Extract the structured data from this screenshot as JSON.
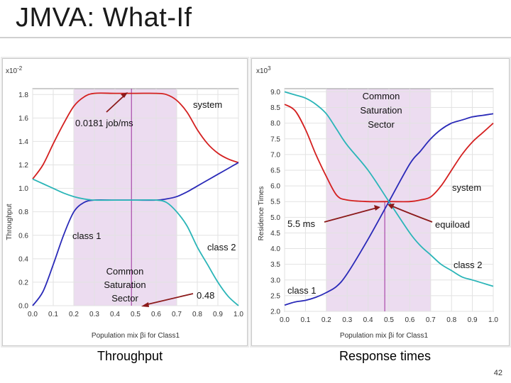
{
  "slide": {
    "title": "JMVA: What-If",
    "page_number": "42"
  },
  "colors": {
    "class1": "#2a2ab8",
    "class2": "#2bb5b8",
    "system": "#d42020",
    "sector": "#ecdcf0",
    "annotation_arrow": "#8b1a1a",
    "marker_line": "#9b2d9b"
  },
  "chart_data": [
    {
      "type": "line",
      "caption": "Throughput",
      "title": "",
      "xlabel": "Population mix βi for Class1",
      "ylabel": "Throughput",
      "scale_label": "x10",
      "scale_exp": "-2",
      "x_ticks": [
        "0.0",
        "0.1",
        "0.2",
        "0.3",
        "0.4",
        "0.5",
        "0.6",
        "0.7",
        "0.8",
        "0.9",
        "1.0"
      ],
      "y_ticks": [
        "0.0",
        "0.2",
        "0.4",
        "0.6",
        "0.8",
        "1.0",
        "1.2",
        "1.4",
        "1.6",
        "1.8"
      ],
      "xlim": [
        0,
        1
      ],
      "ylim": [
        0,
        1.85
      ],
      "sector_range": [
        0.2,
        0.7
      ],
      "marker_x": 0.48,
      "series": [
        {
          "name": "system",
          "x": [
            0,
            0.05,
            0.1,
            0.15,
            0.2,
            0.25,
            0.3,
            0.4,
            0.5,
            0.6,
            0.65,
            0.7,
            0.75,
            0.8,
            0.85,
            0.9,
            0.95,
            1.0
          ],
          "values": [
            1.08,
            1.2,
            1.38,
            1.55,
            1.7,
            1.78,
            1.81,
            1.81,
            1.81,
            1.81,
            1.8,
            1.75,
            1.65,
            1.5,
            1.38,
            1.3,
            1.25,
            1.22
          ]
        },
        {
          "name": "class 1",
          "x": [
            0,
            0.05,
            0.1,
            0.15,
            0.2,
            0.25,
            0.3,
            0.4,
            0.5,
            0.6,
            0.65,
            0.7,
            0.75,
            0.8,
            0.85,
            0.9,
            0.95,
            1.0
          ],
          "values": [
            0.0,
            0.12,
            0.35,
            0.6,
            0.8,
            0.88,
            0.9,
            0.9,
            0.9,
            0.9,
            0.91,
            0.93,
            0.97,
            1.02,
            1.07,
            1.12,
            1.17,
            1.22
          ]
        },
        {
          "name": "class 2",
          "x": [
            0,
            0.05,
            0.1,
            0.15,
            0.2,
            0.25,
            0.3,
            0.4,
            0.5,
            0.6,
            0.65,
            0.7,
            0.75,
            0.8,
            0.85,
            0.9,
            0.95,
            1.0
          ],
          "values": [
            1.08,
            1.04,
            1.0,
            0.96,
            0.93,
            0.91,
            0.9,
            0.9,
            0.9,
            0.9,
            0.88,
            0.8,
            0.68,
            0.5,
            0.35,
            0.2,
            0.08,
            0.0
          ]
        }
      ],
      "annotations": {
        "max_throughput": "0.0181 job/ms",
        "system": "system",
        "class1": "class 1",
        "class2": "class 2",
        "sector_line1": "Common",
        "sector_line2": "Saturation",
        "sector_line3": "Sector",
        "marker_value": "0.48"
      }
    },
    {
      "type": "line",
      "caption": "Response times",
      "title": "",
      "xlabel": "Population mix βi for Class1",
      "ylabel": "Residence Times",
      "scale_label": "x10",
      "scale_exp": "3",
      "x_ticks": [
        "0.0",
        "0.1",
        "0.2",
        "0.3",
        "0.4",
        "0.5",
        "0.6",
        "0.7",
        "0.8",
        "0.9",
        "1.0"
      ],
      "y_ticks": [
        "2.0",
        "2.5",
        "3.0",
        "3.5",
        "4.0",
        "4.5",
        "5.0",
        "5.5",
        "6.0",
        "6.5",
        "7.0",
        "7.5",
        "8.0",
        "8.5",
        "9.0"
      ],
      "xlim": [
        0,
        1
      ],
      "ylim": [
        2.0,
        9.1
      ],
      "sector_range": [
        0.2,
        0.7
      ],
      "marker_x": 0.48,
      "series": [
        {
          "name": "system",
          "x": [
            0,
            0.05,
            0.1,
            0.15,
            0.2,
            0.25,
            0.3,
            0.4,
            0.5,
            0.6,
            0.65,
            0.7,
            0.75,
            0.8,
            0.85,
            0.9,
            0.95,
            1.0
          ],
          "values": [
            8.6,
            8.4,
            7.8,
            7.0,
            6.3,
            5.7,
            5.55,
            5.5,
            5.5,
            5.5,
            5.55,
            5.65,
            6.0,
            6.5,
            7.0,
            7.4,
            7.7,
            8.0
          ]
        },
        {
          "name": "class 1",
          "x": [
            0,
            0.05,
            0.1,
            0.15,
            0.2,
            0.25,
            0.3,
            0.4,
            0.5,
            0.6,
            0.65,
            0.7,
            0.75,
            0.8,
            0.85,
            0.9,
            0.95,
            1.0
          ],
          "values": [
            2.2,
            2.3,
            2.35,
            2.45,
            2.6,
            2.8,
            3.2,
            4.3,
            5.5,
            6.7,
            7.1,
            7.5,
            7.8,
            8.0,
            8.1,
            8.2,
            8.25,
            8.3
          ]
        },
        {
          "name": "class 2",
          "x": [
            0,
            0.05,
            0.1,
            0.15,
            0.2,
            0.25,
            0.3,
            0.4,
            0.5,
            0.6,
            0.65,
            0.7,
            0.75,
            0.8,
            0.85,
            0.9,
            0.95,
            1.0
          ],
          "values": [
            9.0,
            8.9,
            8.8,
            8.6,
            8.3,
            7.8,
            7.3,
            6.5,
            5.5,
            4.5,
            4.1,
            3.8,
            3.5,
            3.3,
            3.1,
            3.0,
            2.9,
            2.8
          ]
        }
      ],
      "annotations": {
        "equiload_value": "5.5 ms",
        "equiload": "equiload",
        "system": "system",
        "class1": "class 1",
        "class2": "class 2",
        "sector_line1": "Common",
        "sector_line2": "Saturation",
        "sector_line3": "Sector"
      }
    }
  ]
}
